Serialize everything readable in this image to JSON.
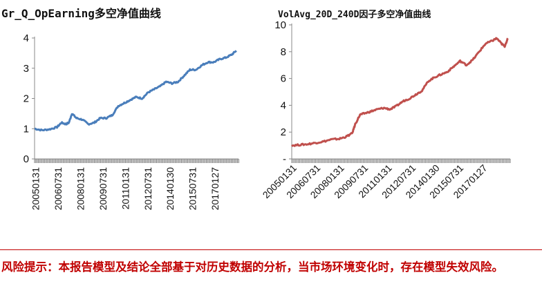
{
  "charts": [
    {
      "title": "Gr_Q_OpEarning多空净值曲线",
      "color": "#4a7ebb",
      "chart_data": {
        "type": "line",
        "title": "Gr_Q_OpEarning多空净值曲线",
        "ylim": [
          0,
          4
        ],
        "yticks": [
          "0",
          "1",
          "2",
          "3",
          "4"
        ],
        "x_tick_labels": [
          "20050131",
          "20060731",
          "20080131",
          "20090731",
          "20110131",
          "20120731",
          "20140130",
          "20150731",
          "20170127"
        ],
        "series": [
          {
            "x": [
              2005.0,
              2005.5,
              2006.0,
              2006.5,
              2006.8,
              2007.1,
              2007.3,
              2007.5,
              2007.8,
              2008.2,
              2008.6,
              2009.0,
              2009.4,
              2009.8,
              2010.2,
              2010.6,
              2011.0,
              2011.4,
              2011.8,
              2012.2,
              2012.6,
              2013.0,
              2013.4,
              2013.8,
              2014.2,
              2014.6,
              2015.0,
              2015.4,
              2015.8,
              2016.2,
              2016.6,
              2017.0,
              2017.4,
              2017.8,
              2018.2,
              2018.5
            ],
            "y": [
              1.0,
              0.95,
              0.98,
              1.05,
              1.2,
              1.15,
              1.2,
              1.5,
              1.35,
              1.3,
              1.15,
              1.2,
              1.35,
              1.35,
              1.45,
              1.75,
              1.85,
              1.95,
              2.05,
              2.0,
              2.2,
              2.3,
              2.4,
              2.55,
              2.5,
              2.55,
              2.75,
              2.95,
              2.95,
              3.1,
              3.2,
              3.2,
              3.3,
              3.35,
              3.45,
              3.58
            ]
          }
        ]
      }
    },
    {
      "title": "VolAvg_20D_240D因子多空净值曲线",
      "color": "#c0504d",
      "chart_data": {
        "type": "line",
        "title": "VolAvg_20D_240D因子多空净值曲线",
        "ylim": [
          0,
          10
        ],
        "yticks": [
          "-",
          "2",
          "4",
          "6",
          "8",
          "10"
        ],
        "x_tick_labels": [
          "20050131",
          "20060731",
          "20080131",
          "20090731",
          "20110131",
          "20120731",
          "20140130",
          "20150731",
          "20170127"
        ],
        "series": [
          {
            "x": [
              2005.0,
              2005.5,
              2006.0,
              2006.5,
              2007.0,
              2007.5,
              2008.0,
              2008.4,
              2008.8,
              2009.0,
              2009.3,
              2009.6,
              2010.0,
              2010.4,
              2010.8,
              2011.2,
              2011.6,
              2012.0,
              2012.4,
              2012.8,
              2013.2,
              2013.6,
              2014.0,
              2014.4,
              2014.8,
              2015.2,
              2015.6,
              2016.0,
              2016.4,
              2016.8,
              2017.2,
              2017.6,
              2017.9,
              2018.2,
              2018.4,
              2018.6
            ],
            "y": [
              1.0,
              1.05,
              1.1,
              1.2,
              1.3,
              1.45,
              1.5,
              1.65,
              1.9,
              2.6,
              3.3,
              3.4,
              3.55,
              3.7,
              3.8,
              3.7,
              3.95,
              4.3,
              4.5,
              4.8,
              5.1,
              5.8,
              6.1,
              6.3,
              6.5,
              6.9,
              7.3,
              7.0,
              7.4,
              8.0,
              8.6,
              8.8,
              9.0,
              8.6,
              8.4,
              9.0
            ]
          }
        ]
      }
    }
  ],
  "risk_notice": "风险提示：本报告模型及结论全部基于对历史数据的分析，当市场环境变化时，存在模型失效风险。"
}
